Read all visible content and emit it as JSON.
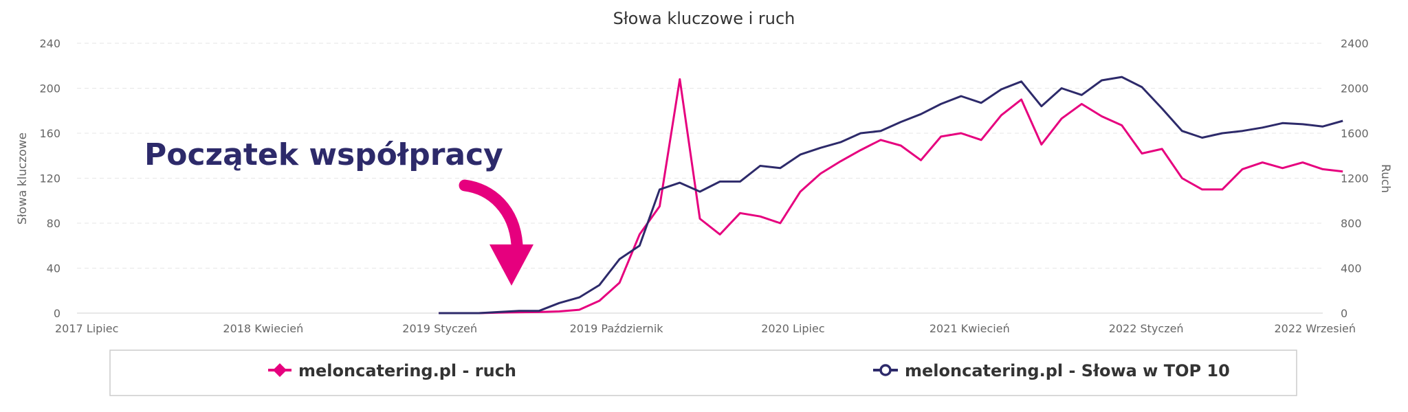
{
  "chart_data": {
    "type": "line",
    "title": "Słowa kluczowe i ruch",
    "y_left_label": "Słowa kluczowe",
    "y_right_label": "Ruch",
    "y_left_ticks": [
      "0",
      "40",
      "80",
      "120",
      "160",
      "200",
      "240"
    ],
    "y_right_ticks": [
      "0",
      "400",
      "800",
      "1200",
      "1600",
      "2000",
      "2400"
    ],
    "y_left_lim": [
      0,
      240
    ],
    "y_right_lim": [
      0,
      2400
    ],
    "x_range": [
      "2017-07",
      "2022-09"
    ],
    "x_ticks": [
      "2017 Lipiec",
      "2018 Kwiecień",
      "2019 Styczeń",
      "2019 Październik",
      "2020 Lipiec",
      "2021 Kwiecień",
      "2022 Styczeń",
      "2022 Wrzesień"
    ],
    "grid": true,
    "legend_position": "bottom",
    "annotation": "Początek współpracy",
    "series": [
      {
        "name": "meloncatering.pl - ruch",
        "axis": "right",
        "color": "#e6007e",
        "marker": "diamond",
        "points": [
          [
            "2019-01",
            0
          ],
          [
            "2019-02",
            0
          ],
          [
            "2019-03",
            0
          ],
          [
            "2019-04",
            5
          ],
          [
            "2019-05",
            8
          ],
          [
            "2019-06",
            10
          ],
          [
            "2019-07",
            15
          ],
          [
            "2019-08",
            30
          ],
          [
            "2019-09",
            110
          ],
          [
            "2019-10",
            270
          ],
          [
            "2019-11",
            700
          ],
          [
            "2019-12",
            950
          ],
          [
            "2020-01",
            2080
          ],
          [
            "2020-02",
            840
          ],
          [
            "2020-03",
            700
          ],
          [
            "2020-04",
            890
          ],
          [
            "2020-05",
            860
          ],
          [
            "2020-06",
            800
          ],
          [
            "2020-07",
            1080
          ],
          [
            "2020-08",
            1240
          ],
          [
            "2020-09",
            1350
          ],
          [
            "2020-10",
            1450
          ],
          [
            "2020-11",
            1540
          ],
          [
            "2020-12",
            1490
          ],
          [
            "2021-01",
            1360
          ],
          [
            "2021-02",
            1570
          ],
          [
            "2021-03",
            1600
          ],
          [
            "2021-04",
            1540
          ],
          [
            "2021-05",
            1760
          ],
          [
            "2021-06",
            1900
          ],
          [
            "2021-07",
            1500
          ],
          [
            "2021-08",
            1730
          ],
          [
            "2021-09",
            1860
          ],
          [
            "2021-10",
            1750
          ],
          [
            "2021-11",
            1670
          ],
          [
            "2021-12",
            1420
          ],
          [
            "2022-01",
            1460
          ],
          [
            "2022-02",
            1200
          ],
          [
            "2022-03",
            1100
          ],
          [
            "2022-04",
            1100
          ],
          [
            "2022-05",
            1280
          ],
          [
            "2022-06",
            1340
          ],
          [
            "2022-07",
            1290
          ],
          [
            "2022-08",
            1340
          ],
          [
            "2022-09",
            1280
          ],
          [
            "2022-10",
            1260
          ]
        ]
      },
      {
        "name": "meloncatering.pl - Słowa w TOP 10",
        "axis": "left",
        "color": "#2d2a6a",
        "marker": "circle",
        "points": [
          [
            "2019-01",
            0
          ],
          [
            "2019-02",
            0
          ],
          [
            "2019-03",
            0
          ],
          [
            "2019-04",
            1
          ],
          [
            "2019-05",
            2
          ],
          [
            "2019-06",
            2
          ],
          [
            "2019-07",
            9
          ],
          [
            "2019-08",
            14
          ],
          [
            "2019-09",
            25
          ],
          [
            "2019-10",
            48
          ],
          [
            "2019-11",
            60
          ],
          [
            "2019-12",
            110
          ],
          [
            "2020-01",
            116
          ],
          [
            "2020-02",
            108
          ],
          [
            "2020-03",
            117
          ],
          [
            "2020-04",
            117
          ],
          [
            "2020-05",
            131
          ],
          [
            "2020-06",
            129
          ],
          [
            "2020-07",
            141
          ],
          [
            "2020-08",
            147
          ],
          [
            "2020-09",
            152
          ],
          [
            "2020-10",
            160
          ],
          [
            "2020-11",
            162
          ],
          [
            "2020-12",
            170
          ],
          [
            "2021-01",
            177
          ],
          [
            "2021-02",
            186
          ],
          [
            "2021-03",
            193
          ],
          [
            "2021-04",
            187
          ],
          [
            "2021-05",
            199
          ],
          [
            "2021-06",
            206
          ],
          [
            "2021-07",
            184
          ],
          [
            "2021-08",
            200
          ],
          [
            "2021-09",
            194
          ],
          [
            "2021-10",
            207
          ],
          [
            "2021-11",
            210
          ],
          [
            "2021-12",
            201
          ],
          [
            "2022-01",
            182
          ],
          [
            "2022-02",
            162
          ],
          [
            "2022-03",
            156
          ],
          [
            "2022-04",
            160
          ],
          [
            "2022-05",
            162
          ],
          [
            "2022-06",
            165
          ],
          [
            "2022-07",
            169
          ],
          [
            "2022-08",
            168
          ],
          [
            "2022-09",
            166
          ],
          [
            "2022-10",
            171
          ]
        ]
      }
    ]
  }
}
